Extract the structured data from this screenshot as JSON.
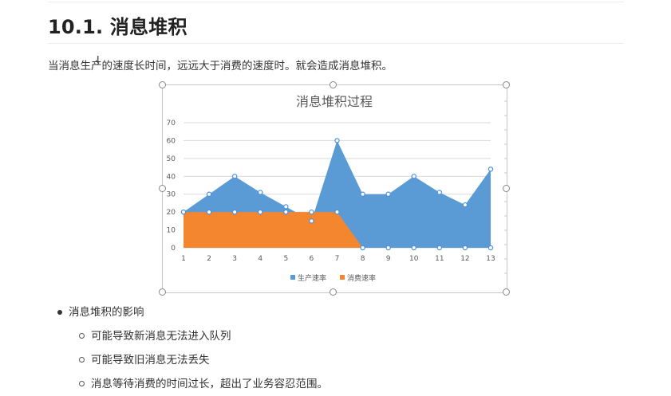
{
  "heading": "10.1. 消息堆积",
  "intro": "当消息生产的速度长时间，远远大于消费的速度时。就会造成消息堆积。",
  "cursor_glyph": "I",
  "chart_data": {
    "type": "area",
    "title": "消息堆积过程",
    "x": [
      1,
      2,
      3,
      4,
      5,
      6,
      7,
      8,
      9,
      10,
      11,
      12,
      13
    ],
    "ylim": [
      0,
      70
    ],
    "yticks": [
      0,
      10,
      20,
      30,
      40,
      50,
      60,
      70
    ],
    "grid": true,
    "legend": "bottom",
    "series": [
      {
        "name": "生产速率",
        "color": "#5b9bd5",
        "values": [
          20,
          30,
          40,
          31,
          23,
          15,
          60,
          30,
          30,
          40,
          31,
          24,
          44
        ]
      },
      {
        "name": "消费速率",
        "color": "#f4862f",
        "values": [
          20,
          20,
          20,
          20,
          20,
          20,
          20,
          0,
          0,
          0,
          0,
          0,
          0
        ]
      }
    ]
  },
  "bullets": [
    {
      "label": "消息堆积的影响",
      "children": [
        "可能导致新消息无法进入队列",
        "可能导致旧消息无法丢失",
        "消息等待消费的时间过长，超出了业务容忍范围。"
      ]
    }
  ]
}
